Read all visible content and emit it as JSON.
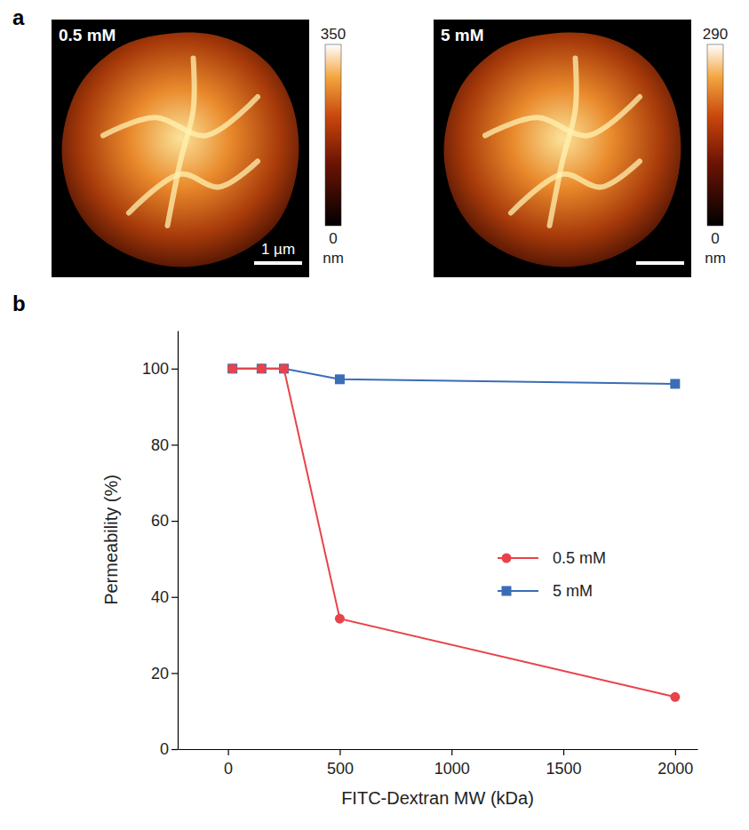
{
  "chart_data": [
    {
      "type": "image",
      "panel_label": "a",
      "title": "0.5 mM",
      "colorbar": {
        "range": [
          0,
          350
        ],
        "ticks": [
          0,
          350
        ],
        "label": "nm"
      },
      "scale_bar": "1 µm"
    },
    {
      "type": "image",
      "title": "5 mM",
      "colorbar": {
        "range": [
          0,
          290
        ],
        "ticks": [
          0,
          290
        ],
        "label": "nm"
      }
    },
    {
      "type": "line",
      "panel_label": "b",
      "x_label": "FITC-Dextran MW (kDa)",
      "y_label": "Permeability (%)",
      "x": [
        20,
        150,
        250,
        500,
        2000
      ],
      "series": [
        {
          "name": "5 mM",
          "color": "#3a6db6",
          "marker": "square",
          "values": [
            100,
            100,
            100,
            97.2,
            96.0
          ]
        },
        {
          "name": "0.5 mM",
          "color": "#e8434a",
          "marker": "circle",
          "values": [
            100,
            100,
            100,
            34.3,
            13.7
          ]
        }
      ],
      "xlim": [
        -225,
        2100
      ],
      "xticks": [
        0,
        500,
        1000,
        1500,
        2000
      ],
      "ylim": [
        0,
        110
      ],
      "yticks": [
        0,
        20,
        40,
        60,
        80,
        100
      ],
      "legend": "right"
    }
  ]
}
